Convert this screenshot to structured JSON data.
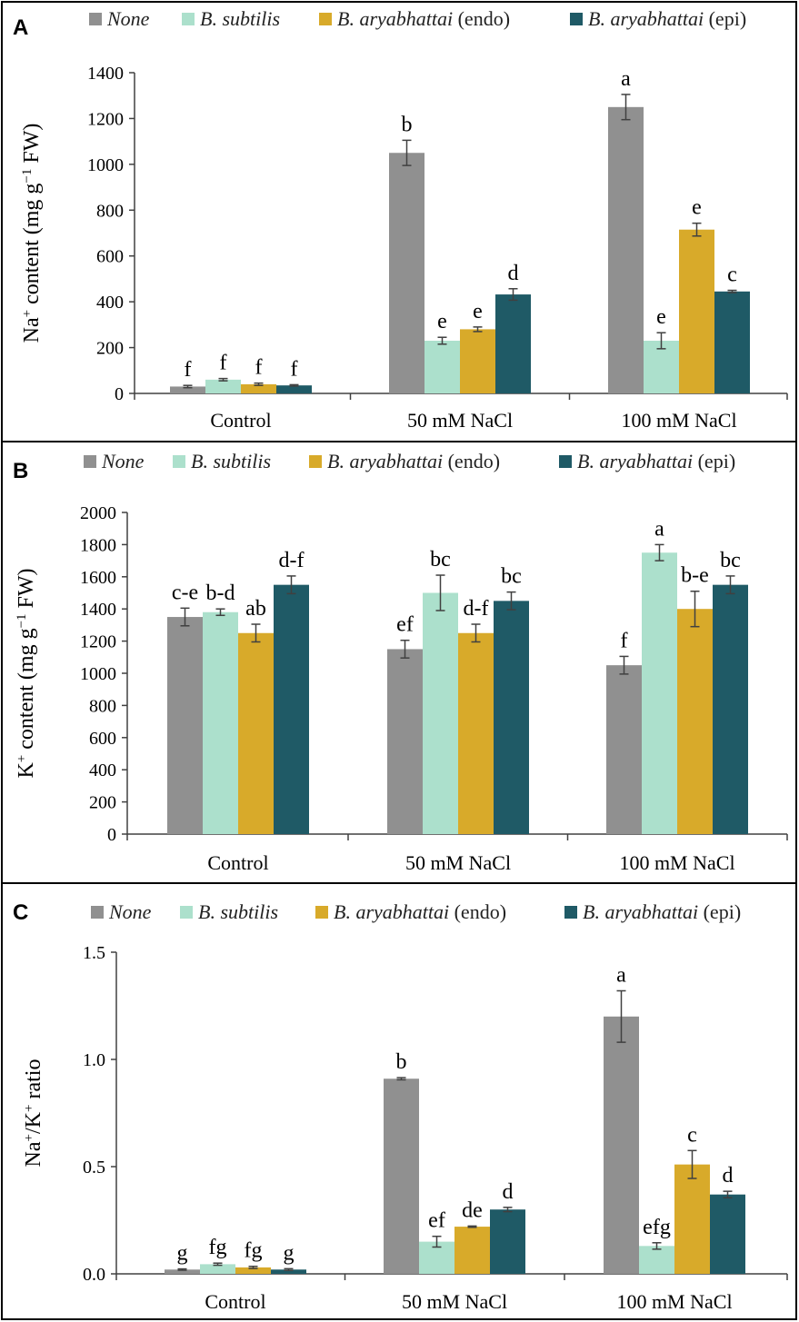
{
  "colors": {
    "none": "#909090",
    "subtilis": "#ace0cc",
    "endo": "#d8aa2a",
    "epi": "#1f5a66",
    "axis": "#404040",
    "frame": "#000000",
    "error": "#404040"
  },
  "legend": [
    {
      "key": "none",
      "name": "None",
      "italic_part": "None",
      "plain_part": ""
    },
    {
      "key": "subtilis",
      "name": "B. subtilis",
      "italic_part": "B. subtilis",
      "plain_part": ""
    },
    {
      "key": "endo",
      "name": "B. aryabhattai (endo)",
      "italic_part": "B. aryabhattai",
      "plain_part": " (endo)"
    },
    {
      "key": "epi",
      "name": "B. aryabhattai (epi)",
      "italic_part": "B. aryabhattai",
      "plain_part": " (epi)"
    }
  ],
  "chart_data": [
    {
      "panel": "A",
      "type": "bar",
      "ylabel": "Na+ content (mg g−1 FW)",
      "ylabel_parts": {
        "main": "Na",
        "sup1": "+",
        "mid": " content (mg g",
        "sup2": "−1",
        "end": " FW)"
      },
      "ylim": [
        0,
        1400
      ],
      "yticks": [
        "0",
        "200",
        "400",
        "600",
        "800",
        "1000",
        "1200",
        "1400"
      ],
      "categories": [
        "Control",
        "50 mM NaCl",
        "100 mM NaCl"
      ],
      "series": [
        {
          "name": "None",
          "values": [
            30,
            1050,
            1250
          ],
          "errors": [
            5,
            55,
            55
          ],
          "letters": [
            "f",
            "b",
            "a"
          ]
        },
        {
          "name": "B. subtilis",
          "values": [
            60,
            230,
            230
          ],
          "errors": [
            5,
            15,
            35
          ],
          "letters": [
            "f",
            "e",
            "e"
          ]
        },
        {
          "name": "B. aryabhattai (endo)",
          "values": [
            40,
            280,
            715
          ],
          "errors": [
            5,
            10,
            28
          ],
          "letters": [
            "f",
            "e",
            "e"
          ]
        },
        {
          "name": "B. aryabhattai (epi)",
          "values": [
            35,
            432,
            445
          ],
          "errors": [
            3,
            25,
            5
          ],
          "letters": [
            "f",
            "d",
            "c"
          ]
        }
      ]
    },
    {
      "panel": "B",
      "type": "bar",
      "ylabel": "K+ content (mg g−1 FW)",
      "ylabel_parts": {
        "main": "K",
        "sup1": "+",
        "mid": " content (mg g",
        "sup2": "−1",
        "end": " FW)"
      },
      "ylim": [
        0,
        2000
      ],
      "yticks": [
        "0",
        "200",
        "400",
        "600",
        "800",
        "1000",
        "1200",
        "1400",
        "1600",
        "1800",
        "2000"
      ],
      "categories": [
        "Control",
        "50 mM NaCl",
        "100 mM NaCl"
      ],
      "series": [
        {
          "name": "None",
          "values": [
            1350,
            1150,
            1050
          ],
          "errors": [
            55,
            55,
            55
          ],
          "letters": [
            "c-e",
            "ef",
            "f"
          ]
        },
        {
          "name": "B. subtilis",
          "values": [
            1380,
            1500,
            1750
          ],
          "errors": [
            20,
            110,
            50
          ],
          "letters": [
            "b-d",
            "bc",
            "a"
          ]
        },
        {
          "name": "B. aryabhattai (endo)",
          "values": [
            1250,
            1250,
            1400
          ],
          "errors": [
            55,
            55,
            110
          ],
          "letters": [
            "ab",
            "d-f",
            "b-e"
          ]
        },
        {
          "name": "B. aryabhattai (epi)",
          "values": [
            1550,
            1450,
            1550
          ],
          "errors": [
            55,
            55,
            55
          ],
          "letters": [
            "d-f",
            "bc",
            "bc"
          ]
        }
      ]
    },
    {
      "panel": "C",
      "type": "bar",
      "ylabel": "Na+/K+ ratio",
      "ylabel_parts": {
        "main": "Na",
        "sup1": "+",
        "mid": "/K",
        "sup2": "+",
        "end": " ratio"
      },
      "ylim": [
        0,
        1.5
      ],
      "yticks": [
        "0.0",
        "0.5",
        "1.0",
        "1.5"
      ],
      "categories": [
        "Control",
        "50 mM NaCl",
        "100 mM NaCl"
      ],
      "series": [
        {
          "name": "None",
          "values": [
            0.02,
            0.91,
            1.2
          ],
          "errors": [
            0.003,
            0.005,
            0.12
          ],
          "letters": [
            "g",
            "b",
            "a"
          ]
        },
        {
          "name": "B. subtilis",
          "values": [
            0.045,
            0.15,
            0.13
          ],
          "errors": [
            0.005,
            0.025,
            0.015
          ],
          "letters": [
            "fg",
            "ef",
            "efg"
          ]
        },
        {
          "name": "B. aryabhattai (endo)",
          "values": [
            0.03,
            0.22,
            0.51
          ],
          "errors": [
            0.005,
            0.003,
            0.065
          ],
          "letters": [
            "fg",
            "de",
            "c"
          ]
        },
        {
          "name": "B. aryabhattai (epi)",
          "values": [
            0.02,
            0.3,
            0.37
          ],
          "errors": [
            0.004,
            0.01,
            0.015
          ],
          "letters": [
            "g",
            "d",
            "d"
          ]
        }
      ]
    }
  ]
}
